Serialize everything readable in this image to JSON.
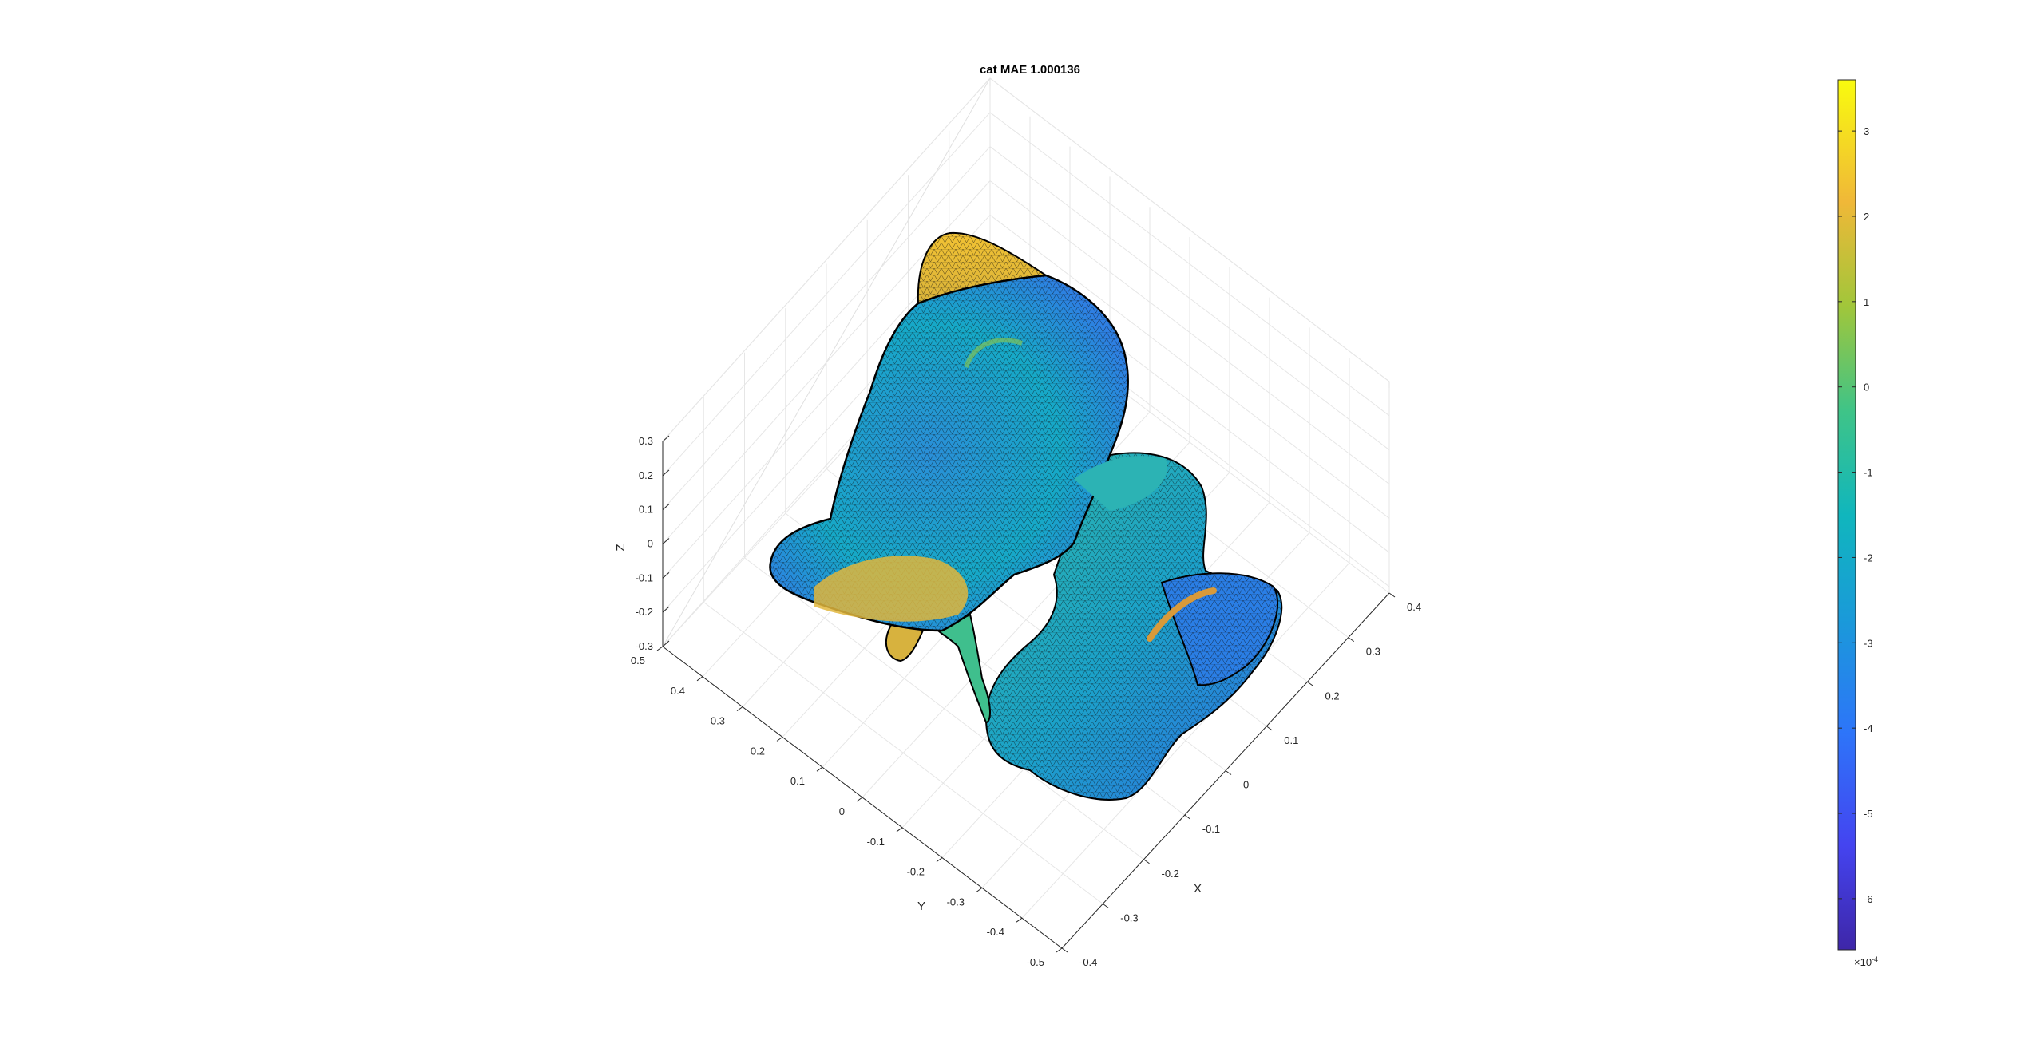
{
  "chart_data": {
    "type": "surface",
    "title": "cat MAE 1.000136",
    "xlabel": "X",
    "ylabel": "Y",
    "zlabel": "Z",
    "xlim": [
      -0.4,
      0.4
    ],
    "ylim": [
      -0.5,
      0.5
    ],
    "zlim": [
      -0.3,
      0.3
    ],
    "x_ticks": [
      "-0.4",
      "-0.3",
      "-0.2",
      "-0.1",
      "0",
      "0.1",
      "0.2",
      "0.3",
      "0.4"
    ],
    "y_ticks": [
      "-0.5",
      "-0.4",
      "-0.3",
      "-0.2",
      "-0.1",
      "0",
      "0.1",
      "0.2",
      "0.3",
      "0.4",
      "0.5"
    ],
    "z_ticks": [
      "-0.3",
      "-0.2",
      "-0.1",
      "0",
      "0.1",
      "0.2",
      "0.3"
    ],
    "grid": true,
    "colormap": "parula",
    "colorbar": {
      "ticks": [
        "3",
        "2",
        "1",
        "0",
        "-1",
        "-2",
        "-3",
        "-4",
        "-5",
        "-6"
      ],
      "range": [
        -6.6,
        3.6
      ],
      "exponent_label": "×10",
      "exponent_power": "-4"
    }
  }
}
